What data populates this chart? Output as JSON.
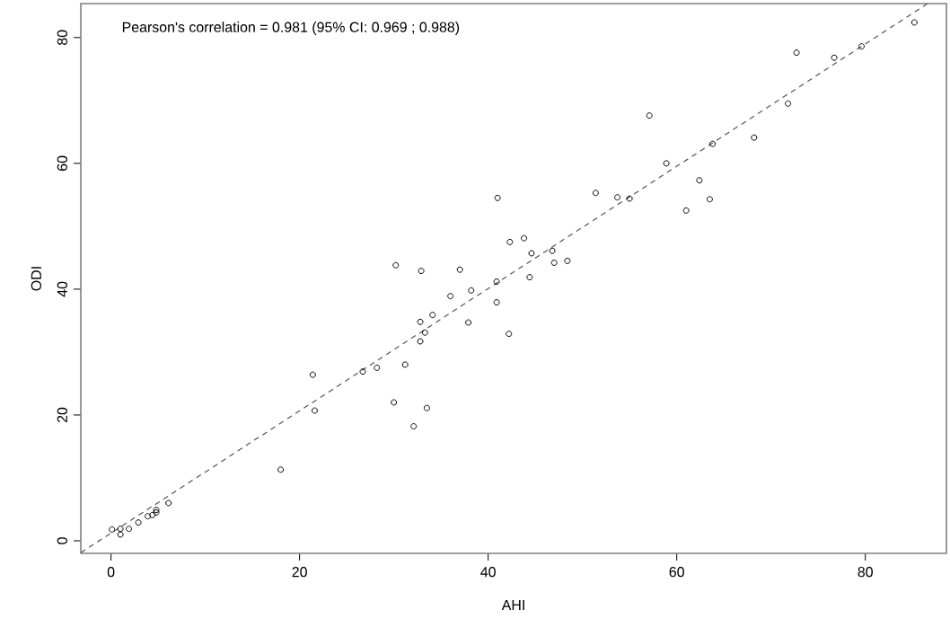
{
  "chart_data": {
    "type": "scatter",
    "xlabel": "AHI",
    "ylabel": "ODI",
    "annotations": [
      "Pearson's correlation = 0.981 (95% CI: 0.969 ; 0.988)"
    ],
    "xlim": [
      -3.2,
      88.6
    ],
    "ylim": [
      -2,
      85.4
    ],
    "xticks": [
      0,
      20,
      40,
      60,
      80
    ],
    "yticks": [
      0,
      20,
      40,
      60,
      80
    ],
    "grid": false,
    "marker": "circle",
    "series": [
      {
        "color": "#000000",
        "x": [
          0.1,
          1,
          1,
          1.9,
          2.9,
          3.9,
          4.4,
          4.8,
          4.8,
          6.1,
          18,
          21.4,
          21.6,
          26.7,
          28.2,
          31.2,
          30,
          32.1,
          33.5,
          32.8,
          33.3,
          32.8,
          34.1,
          37.9,
          42.2,
          30.2,
          32.9,
          37,
          36,
          38.2,
          85.2,
          79.6,
          76.7,
          72.7,
          71.8,
          68.2,
          63.8,
          57.1,
          58.9,
          62.4,
          61,
          63.5,
          51.4,
          53.7,
          55,
          41,
          42.3,
          43.8,
          44.6,
          46.8,
          47,
          48.4,
          44.4,
          40.9,
          40.9
        ],
        "values": [
          1.8,
          1.9,
          1,
          1.9,
          2.9,
          3.9,
          4.1,
          4.5,
          4.9,
          6,
          11.3,
          26.4,
          20.7,
          26.9,
          27.5,
          28,
          22,
          18.2,
          21.1,
          31.7,
          33.1,
          34.8,
          35.9,
          34.7,
          32.9,
          43.8,
          42.9,
          43.1,
          38.9,
          39.8,
          82.4,
          78.6,
          76.8,
          77.6,
          69.5,
          64.1,
          63.1,
          67.6,
          60,
          57.3,
          52.5,
          54.3,
          55.3,
          54.6,
          54.4,
          54.5,
          47.5,
          48.1,
          45.7,
          46.1,
          44.2,
          44.5,
          41.9,
          41.2,
          37.9
        ]
      },
      {
        "type": "line",
        "color": "#555555",
        "line_style": "dashed",
        "marker": "none",
        "x": [
          -3.2,
          86.6
        ],
        "values": [
          -1.9,
          85.4
        ]
      }
    ]
  }
}
